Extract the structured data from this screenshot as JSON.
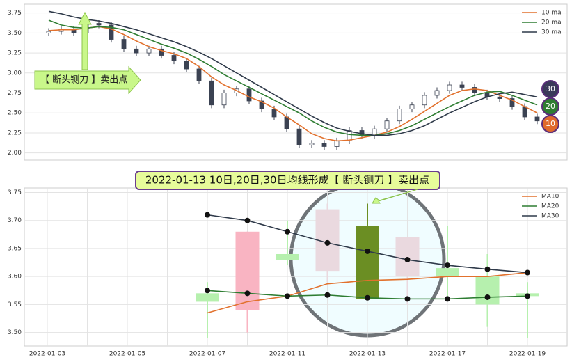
{
  "chart_data": [
    {
      "type": "candlestick",
      "open": [
        3.5,
        3.52,
        3.55,
        3.5,
        3.62,
        3.6,
        3.42,
        3.3,
        3.25,
        3.3,
        3.22,
        3.15,
        3.05,
        2.9,
        2.6,
        2.75,
        2.8,
        2.65,
        2.55,
        2.45,
        2.3,
        2.1,
        2.12,
        2.08,
        2.15,
        2.28,
        2.22,
        2.3,
        2.4,
        2.55,
        2.6,
        2.72,
        2.78,
        2.85,
        2.82,
        2.75,
        2.7,
        2.68,
        2.58,
        2.45
      ],
      "close": [
        3.52,
        3.55,
        3.5,
        3.62,
        3.6,
        3.42,
        3.3,
        3.25,
        3.3,
        3.22,
        3.15,
        3.05,
        2.9,
        2.6,
        2.75,
        2.8,
        2.65,
        2.55,
        2.45,
        2.3,
        2.1,
        2.12,
        2.08,
        2.15,
        2.28,
        2.22,
        2.3,
        2.4,
        2.55,
        2.6,
        2.72,
        2.78,
        2.85,
        2.82,
        2.75,
        2.7,
        2.68,
        2.58,
        2.45,
        2.4
      ],
      "high": [
        3.56,
        3.59,
        3.59,
        3.66,
        3.66,
        3.64,
        3.46,
        3.34,
        3.34,
        3.34,
        3.26,
        3.19,
        3.09,
        2.94,
        2.79,
        2.84,
        2.84,
        2.69,
        2.59,
        2.49,
        2.34,
        2.16,
        2.16,
        2.19,
        2.32,
        2.32,
        2.34,
        2.44,
        2.59,
        2.64,
        2.76,
        2.82,
        2.89,
        2.89,
        2.86,
        2.79,
        2.74,
        2.72,
        2.62,
        2.49
      ],
      "low": [
        3.46,
        3.48,
        3.46,
        3.46,
        3.56,
        3.38,
        3.26,
        3.21,
        3.21,
        3.18,
        3.11,
        3.01,
        2.86,
        2.56,
        2.56,
        2.71,
        2.61,
        2.51,
        2.41,
        2.26,
        2.06,
        2.06,
        2.04,
        2.04,
        2.11,
        2.18,
        2.18,
        2.26,
        2.36,
        2.51,
        2.56,
        2.68,
        2.74,
        2.78,
        2.71,
        2.66,
        2.64,
        2.54,
        2.41,
        2.36
      ],
      "up_color": "#ffffff",
      "down_color": "#3b4252",
      "series": [
        {
          "name": "10 ma",
          "color": "#e2712d",
          "values": [
            3.53,
            3.54,
            3.54,
            3.56,
            3.58,
            3.55,
            3.48,
            3.4,
            3.33,
            3.28,
            3.24,
            3.18,
            3.08,
            2.95,
            2.85,
            2.78,
            2.7,
            2.64,
            2.56,
            2.45,
            2.35,
            2.24,
            2.18,
            2.15,
            2.16,
            2.19,
            2.22,
            2.26,
            2.33,
            2.42,
            2.52,
            2.62,
            2.72,
            2.78,
            2.8,
            2.78,
            2.72,
            2.66,
            2.58,
            2.5
          ]
        },
        {
          "name": "20 ma",
          "color": "#2e7d32",
          "values": [
            3.66,
            3.6,
            3.57,
            3.56,
            3.58,
            3.57,
            3.54,
            3.48,
            3.42,
            3.36,
            3.31,
            3.25,
            3.17,
            3.08,
            2.98,
            2.9,
            2.82,
            2.74,
            2.66,
            2.58,
            2.5,
            2.4,
            2.32,
            2.26,
            2.23,
            2.22,
            2.22,
            2.24,
            2.28,
            2.34,
            2.42,
            2.5,
            2.58,
            2.65,
            2.72,
            2.76,
            2.77,
            2.72,
            2.66,
            2.6
          ]
        },
        {
          "name": "30 ma",
          "color": "#2f3a4a",
          "values": [
            3.77,
            3.74,
            3.7,
            3.67,
            3.65,
            3.62,
            3.58,
            3.54,
            3.49,
            3.44,
            3.39,
            3.33,
            3.26,
            3.18,
            3.09,
            3.0,
            2.91,
            2.82,
            2.73,
            2.64,
            2.55,
            2.46,
            2.38,
            2.31,
            2.27,
            2.24,
            2.22,
            2.22,
            2.24,
            2.28,
            2.34,
            2.42,
            2.5,
            2.57,
            2.64,
            2.7,
            2.74,
            2.76,
            2.73,
            2.7
          ]
        }
      ],
      "ylim": [
        1.91,
        3.86
      ],
      "yticks": [
        {
          "value": 2.0,
          "label": "2.00"
        },
        {
          "value": 2.25,
          "label": "2.25"
        },
        {
          "value": 2.5,
          "label": "2.50"
        },
        {
          "value": 2.75,
          "label": "2.75"
        },
        {
          "value": 3.0,
          "label": "3.00"
        },
        {
          "value": 3.25,
          "label": "3.25"
        },
        {
          "value": 3.5,
          "label": "3.50"
        },
        {
          "value": 3.75,
          "label": "3.75"
        }
      ],
      "grid": true,
      "legend": "upper right",
      "annotation": "【 断头铡刀 】卖出点",
      "badges": [
        {
          "label": "30",
          "color": "#3a3a5a"
        },
        {
          "label": "20",
          "color": "#2e7d32"
        },
        {
          "label": "10",
          "color": "#e06a2c"
        }
      ]
    },
    {
      "type": "candlestick",
      "categories": [
        "2022-01-03",
        null,
        "2022-01-05",
        null,
        "2022-01-07",
        null,
        "2022-01-11",
        null,
        "2022-01-13",
        null,
        "2022-01-17",
        null,
        "2022-01-19",
        null
      ],
      "open": [
        null,
        null,
        null,
        null,
        3.57,
        3.54,
        3.64,
        3.61,
        3.69,
        3.6,
        3.615,
        3.6,
        3.57,
        null
      ],
      "close": [
        null,
        null,
        null,
        null,
        3.555,
        3.68,
        3.63,
        3.72,
        3.56,
        3.67,
        3.6,
        3.55,
        3.565,
        null
      ],
      "high": [
        null,
        null,
        null,
        null,
        3.59,
        3.68,
        3.7,
        3.73,
        3.73,
        3.67,
        3.69,
        3.64,
        3.59,
        null
      ],
      "low": [
        null,
        null,
        null,
        null,
        3.49,
        3.5,
        3.62,
        3.59,
        3.56,
        3.55,
        3.56,
        3.51,
        3.49,
        null
      ],
      "colors": [
        null,
        null,
        null,
        null,
        "#b6f0ae",
        "#f9b4c2",
        "#b6f0ae",
        "#ead9df",
        "#6b8e23",
        "#ead9df",
        "#b6f0ae",
        "#b6f0ae",
        "#b6f0ae",
        null
      ],
      "series": [
        {
          "name": "MA10",
          "color": "#e2712d",
          "values": [
            null,
            null,
            null,
            null,
            3.535,
            3.555,
            3.565,
            3.587,
            3.593,
            3.595,
            3.6,
            3.6,
            3.607,
            null
          ]
        },
        {
          "name": "MA20",
          "color": "#2e7d32",
          "values": [
            null,
            null,
            null,
            null,
            3.575,
            3.57,
            3.565,
            3.567,
            3.562,
            3.56,
            3.56,
            3.563,
            3.565,
            null
          ]
        },
        {
          "name": "MA30",
          "color": "#2f3a4a",
          "values": [
            null,
            null,
            null,
            null,
            3.71,
            3.7,
            3.68,
            3.66,
            3.645,
            3.63,
            3.62,
            3.613,
            3.607,
            null
          ]
        }
      ],
      "ylim": [
        3.476,
        3.758
      ],
      "yticks": [
        {
          "value": 3.5,
          "label": "3.50"
        },
        {
          "value": 3.55,
          "label": "3.55"
        },
        {
          "value": 3.6,
          "label": "3.60"
        },
        {
          "value": 3.65,
          "label": "3.65"
        },
        {
          "value": 3.7,
          "label": "3.70"
        },
        {
          "value": 3.75,
          "label": "3.75"
        }
      ],
      "grid": true,
      "legend": "upper right",
      "annotation": "2022-01-13 10日,20日,30日均线形成【 断头铡刀 】卖出点"
    }
  ]
}
